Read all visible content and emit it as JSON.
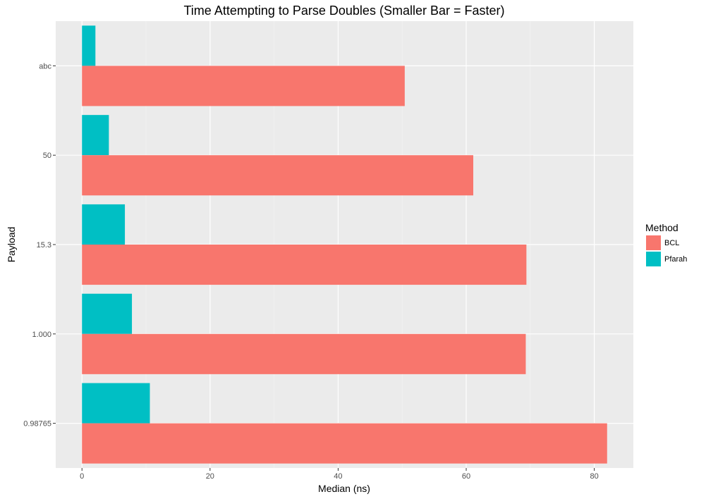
{
  "chart_data": {
    "type": "bar",
    "orientation": "horizontal",
    "title": "Time Attempting to Parse Doubles (Smaller Bar = Faster)",
    "xlabel": "Median (ns)",
    "ylabel": "Payload",
    "categories": [
      "abc",
      "50",
      "15.3",
      "1.000",
      "0.98765"
    ],
    "series": [
      {
        "name": "Pfarah",
        "color": "#00bfc4",
        "values": [
          2.1,
          4.2,
          6.7,
          7.8,
          10.6
        ]
      },
      {
        "name": "BCL",
        "color": "#f8766d",
        "values": [
          50.4,
          61.1,
          69.4,
          69.3,
          82.0
        ]
      }
    ],
    "xlim": [
      -4.1,
      86.1
    ],
    "xticks": [
      0,
      20,
      40,
      60,
      80
    ],
    "grid": true,
    "legend": {
      "title": "Method",
      "position": "right",
      "entries": [
        "BCL",
        "Pfarah"
      ]
    }
  }
}
